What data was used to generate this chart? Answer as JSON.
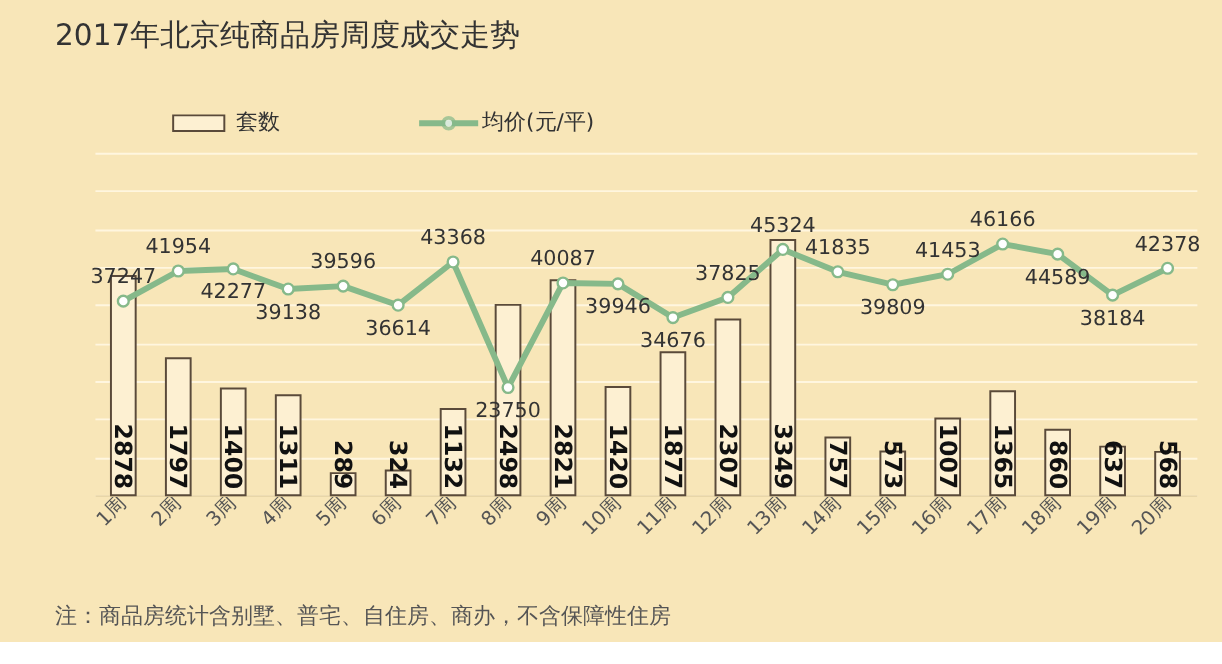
{
  "chart_data": {
    "type": "bar",
    "title": "2017年北京纯商品房周度成交走势",
    "categories": [
      "1周",
      "2周",
      "3周",
      "4周",
      "5周",
      "6周",
      "7周",
      "8周",
      "9周",
      "10周",
      "11周",
      "12周",
      "13周",
      "14周",
      "15周",
      "16周",
      "17周",
      "18周",
      "19周",
      "20周"
    ],
    "series": [
      {
        "name": "套数",
        "color": "#fdf0d2",
        "values": [
          2878,
          1797,
          1400,
          1311,
          289,
          324,
          1132,
          2498,
          2821,
          1420,
          1877,
          2307,
          3349,
          757,
          573,
          1007,
          1365,
          860,
          637,
          568
        ]
      },
      {
        "name": "均价(元/平)",
        "type": "line",
        "axis": "y2",
        "color": "#86b98a",
        "marker": "circle",
        "values": [
          37247,
          41954,
          42277,
          39138,
          39596,
          36614,
          43368,
          23750,
          40087,
          39946,
          34676,
          37825,
          45324,
          41835,
          39809,
          41453,
          46166,
          44589,
          38184,
          42378
        ]
      }
    ],
    "data_labels": true,
    "grid": "y",
    "legend": "top left",
    "annotations": [
      "注：商品房统计含别墅、普宅、自住房、商办，不含保障性住房"
    ]
  }
}
